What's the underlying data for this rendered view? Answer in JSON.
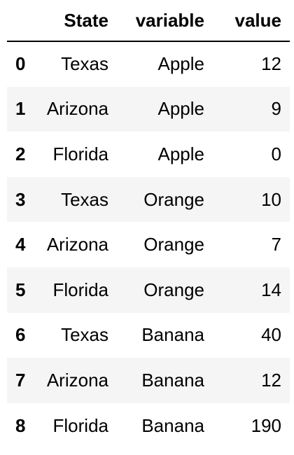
{
  "table": {
    "columns": [
      "",
      "State",
      "variable",
      "value"
    ],
    "rows": [
      {
        "index": "0",
        "State": "Texas",
        "variable": "Apple",
        "value": "12"
      },
      {
        "index": "1",
        "State": "Arizona",
        "variable": "Apple",
        "value": "9"
      },
      {
        "index": "2",
        "State": "Florida",
        "variable": "Apple",
        "value": "0"
      },
      {
        "index": "3",
        "State": "Texas",
        "variable": "Orange",
        "value": "10"
      },
      {
        "index": "4",
        "State": "Arizona",
        "variable": "Orange",
        "value": "7"
      },
      {
        "index": "5",
        "State": "Florida",
        "variable": "Orange",
        "value": "14"
      },
      {
        "index": "6",
        "State": "Texas",
        "variable": "Banana",
        "value": "40"
      },
      {
        "index": "7",
        "State": "Arizona",
        "variable": "Banana",
        "value": "12"
      },
      {
        "index": "8",
        "State": "Florida",
        "variable": "Banana",
        "value": "190"
      }
    ]
  },
  "colors": {
    "text": "#000000",
    "background": "#ffffff",
    "row_stripe": "#f5f5f5",
    "header_rule": "#000000"
  }
}
